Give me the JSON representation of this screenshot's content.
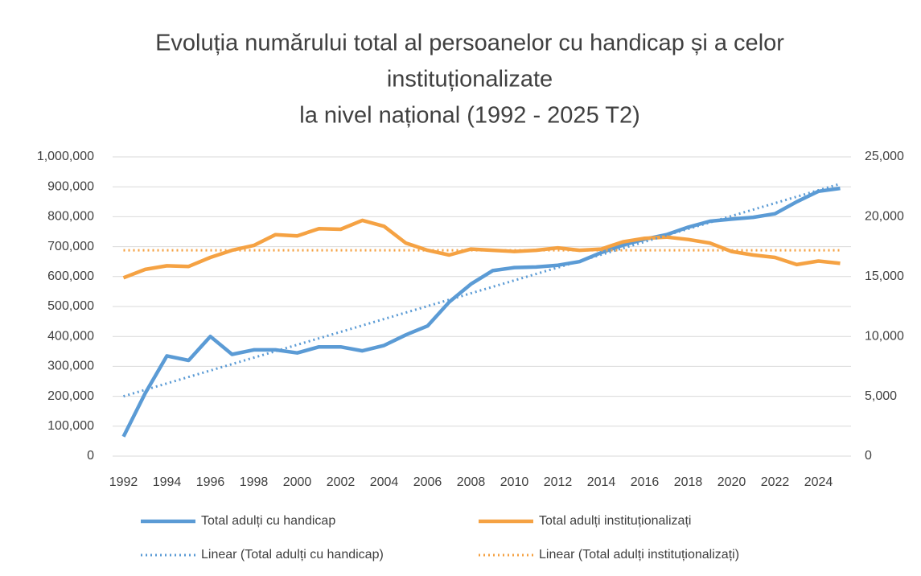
{
  "chart_data": {
    "type": "line",
    "title": [
      "Evoluția numărului total al persoanelor cu handicap și a celor",
      "instituționalizate",
      "la nivel național (1992 - 2025 T2)"
    ],
    "x": [
      1992,
      1993,
      1994,
      1995,
      1996,
      1997,
      1998,
      1999,
      2000,
      2001,
      2002,
      2003,
      2004,
      2005,
      2006,
      2007,
      2008,
      2009,
      2010,
      2011,
      2012,
      2013,
      2014,
      2015,
      2016,
      2017,
      2018,
      2019,
      2020,
      2021,
      2022,
      2023,
      2024,
      2025
    ],
    "series": [
      {
        "name": "Total adulți cu handicap",
        "color": "#5b9bd5",
        "axis": "y",
        "values": [
          65000,
          210000,
          335000,
          320000,
          400000,
          340000,
          355000,
          355000,
          345000,
          365000,
          365000,
          352000,
          370000,
          405000,
          435000,
          515000,
          575000,
          620000,
          630000,
          632000,
          638000,
          650000,
          680000,
          705000,
          725000,
          740000,
          765000,
          785000,
          792000,
          798000,
          810000,
          850000,
          885000,
          895000
        ]
      },
      {
        "name": "Total adulți instituționalizați",
        "color": "#f5a243",
        "axis": "y2",
        "values": [
          14900,
          15600,
          15900,
          15850,
          16600,
          17200,
          17600,
          18500,
          18400,
          19000,
          18950,
          19700,
          19200,
          17800,
          17200,
          16800,
          17300,
          17200,
          17100,
          17200,
          17400,
          17200,
          17300,
          17900,
          18200,
          18300,
          18100,
          17800,
          17100,
          16800,
          16600,
          16000,
          16300,
          16100
        ]
      },
      {
        "name": "Linear (Total adulți cu handicap)",
        "color": "#5b9bd5",
        "axis": "y",
        "style": "dotted",
        "x": [
          1992,
          2025
        ],
        "values": [
          200000,
          910000
        ]
      },
      {
        "name": "Linear (Total adulți instituționalizați)",
        "color": "#f5a243",
        "axis": "y2",
        "style": "dotted",
        "x": [
          1992,
          2025
        ],
        "values": [
          17200,
          17200
        ]
      }
    ],
    "xlim": [
      1991.5,
      2025.5
    ],
    "xticks": [
      1992,
      1994,
      1996,
      1998,
      2000,
      2002,
      2004,
      2006,
      2008,
      2010,
      2012,
      2014,
      2016,
      2018,
      2020,
      2022,
      2024
    ],
    "ylim": [
      0,
      1000000
    ],
    "yticks": [
      0,
      {
        "value": 100000,
        "label": "100,000"
      },
      {
        "value": 200000,
        "label": "200,000"
      },
      {
        "value": 300000,
        "label": "300,000"
      },
      {
        "value": 400000,
        "label": "400,000"
      },
      {
        "value": 500000,
        "label": "500,000"
      },
      {
        "value": 600000,
        "label": "600,000"
      },
      {
        "value": 700000,
        "label": "700,000"
      },
      {
        "value": 800000,
        "label": "800,000"
      },
      {
        "value": 900000,
        "label": "900,000"
      },
      {
        "value": 1000000,
        "label": "1,000,000"
      }
    ],
    "y2lim": [
      0,
      25000
    ],
    "y2ticks": [
      0,
      {
        "value": 5000,
        "label": "5,000"
      },
      {
        "value": 10000,
        "label": "10,000"
      },
      {
        "value": 15000,
        "label": "15,000"
      },
      {
        "value": 20000,
        "label": "20,000"
      },
      {
        "value": 25000,
        "label": "25,000"
      }
    ],
    "grid": true,
    "legend": "bottom"
  }
}
